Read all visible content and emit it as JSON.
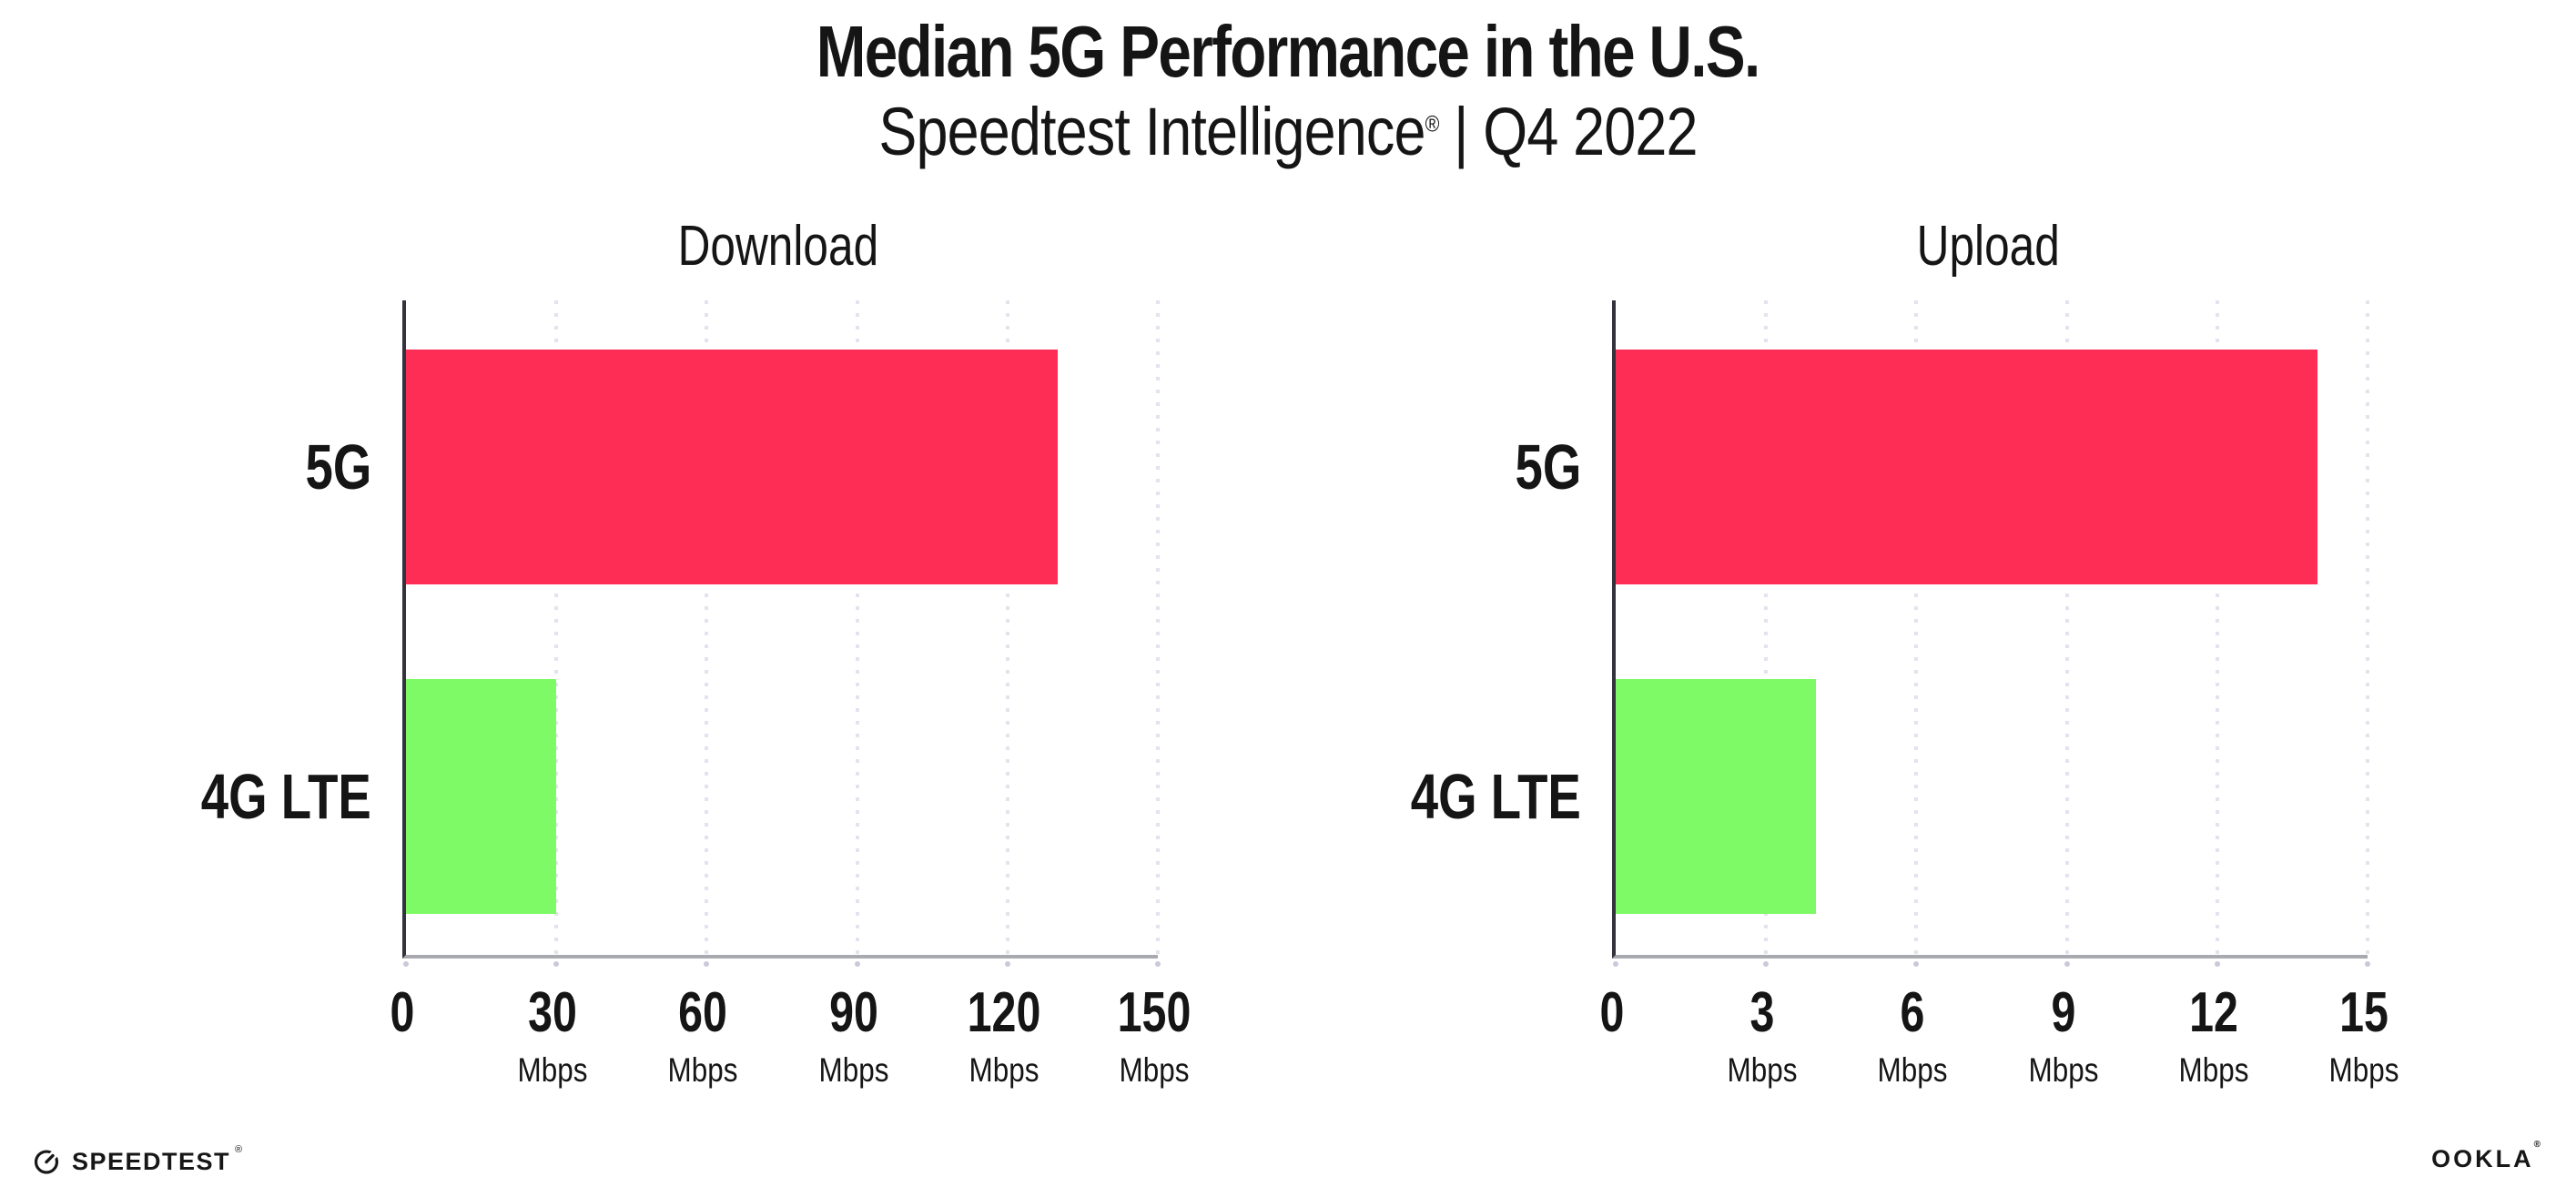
{
  "header": {
    "title": "Median 5G Performance in the U.S.",
    "subtitle_brand": "Speedtest Intelligence",
    "subtitle_reg": "®",
    "subtitle_rest": " | Q4 2022"
  },
  "colors": {
    "bar_5g": "#FE2D55",
    "bar_4g_lte": "#7DFA65",
    "gridline": "#E3E3F0",
    "y_axis": "#35323E",
    "x_axis": "#A9A9B0",
    "text": "#151515"
  },
  "chart_data": [
    {
      "type": "bar",
      "orientation": "horizontal",
      "title": "Download",
      "categories": [
        "5G",
        "4G LTE"
      ],
      "values": [
        130,
        30
      ],
      "unit": "Mbps",
      "xlim": [
        0,
        150
      ],
      "xticks": [
        0,
        30,
        60,
        90,
        120,
        150
      ],
      "grid": "vertical-dotted",
      "legend": "none",
      "bar_colors": [
        "#FE2D55",
        "#7DFA65"
      ]
    },
    {
      "type": "bar",
      "orientation": "horizontal",
      "title": "Upload",
      "categories": [
        "5G",
        "4G LTE"
      ],
      "values": [
        14,
        4
      ],
      "unit": "Mbps",
      "xlim": [
        0,
        15
      ],
      "xticks": [
        0,
        3,
        6,
        9,
        12,
        15
      ],
      "grid": "vertical-dotted",
      "legend": "none",
      "bar_colors": [
        "#FE2D55",
        "#7DFA65"
      ]
    }
  ],
  "footer": {
    "speedtest_label": "SPEEDTEST",
    "speedtest_reg": "®",
    "speedtest_icon": "gauge-icon",
    "ookla_label": "OOKLA",
    "ookla_reg": "®"
  }
}
